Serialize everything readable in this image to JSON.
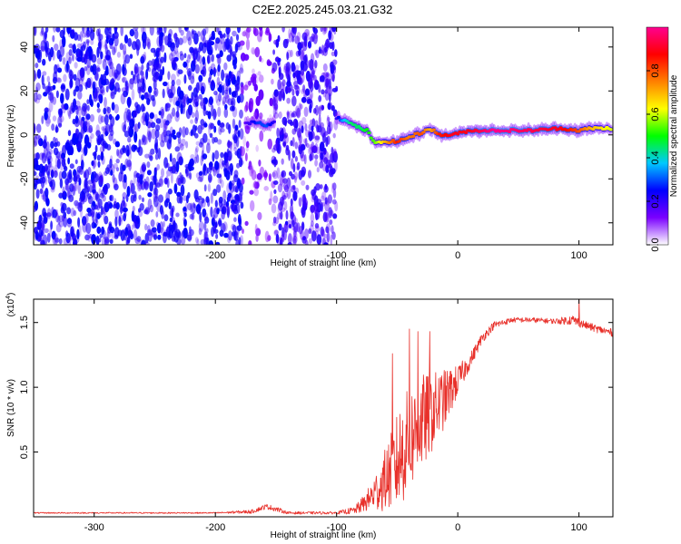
{
  "title": "C2E2.2025.245.03.21.G32",
  "chart_data": [
    {
      "type": "heatmap",
      "name": "spectrogram",
      "xlabel": "Height of straight line (km)",
      "ylabel": "Frequency (Hz)",
      "xlim": [
        -350,
        128
      ],
      "ylim": [
        -50,
        49
      ],
      "xticks": [
        -300,
        -200,
        -100,
        0,
        100
      ],
      "xtick_labels": [
        "-300",
        "-200",
        "-100",
        "0",
        "100"
      ],
      "yticks": [
        -40,
        -20,
        0,
        20,
        40
      ],
      "ytick_labels": [
        "-40",
        "-20",
        "0",
        "20",
        "40"
      ],
      "blocks": [
        {
          "x0": -350,
          "x1": -178,
          "level": 0.18,
          "state": "broadband-noise"
        },
        {
          "x0": -178,
          "x1": -152,
          "level": 0.08,
          "state": "sparse-noise"
        },
        {
          "x0": -152,
          "x1": -100,
          "level": 0.15,
          "state": "broadband-noise"
        }
      ],
      "tonal_band": [
        {
          "x": -175,
          "f": 5,
          "amp": 0.15
        },
        {
          "x": -165,
          "f": 6,
          "amp": 0.28
        },
        {
          "x": -158,
          "f": 4,
          "amp": 0.3
        },
        {
          "x": -150,
          "f": 7,
          "amp": 0.18
        },
        {
          "x": -100,
          "f": 8,
          "amp": 0.2
        },
        {
          "x": -95,
          "f": 7,
          "amp": 0.35
        },
        {
          "x": -88,
          "f": 5,
          "amp": 0.45
        },
        {
          "x": -80,
          "f": 3,
          "amp": 0.45
        },
        {
          "x": -75,
          "f": 2,
          "amp": 0.5
        },
        {
          "x": -68,
          "f": -4,
          "amp": 0.55
        },
        {
          "x": -60,
          "f": -3,
          "amp": 0.7
        },
        {
          "x": -50,
          "f": -3,
          "amp": 0.85
        },
        {
          "x": -40,
          "f": -1,
          "amp": 0.75
        },
        {
          "x": -30,
          "f": 1,
          "amp": 0.8
        },
        {
          "x": -23,
          "f": 3,
          "amp": 0.7
        },
        {
          "x": -15,
          "f": 0,
          "amp": 0.85
        },
        {
          "x": -5,
          "f": 0,
          "amp": 0.9
        },
        {
          "x": 10,
          "f": 2,
          "amp": 0.9
        },
        {
          "x": 30,
          "f": 2,
          "amp": 1.0
        },
        {
          "x": 60,
          "f": 2,
          "amp": 0.95
        },
        {
          "x": 85,
          "f": 3,
          "amp": 0.9
        },
        {
          "x": 100,
          "f": 2,
          "amp": 0.8
        },
        {
          "x": 110,
          "f": 3,
          "amp": 0.7
        },
        {
          "x": 128,
          "f": 3,
          "amp": 0.6
        }
      ],
      "colorbar": {
        "label": "Normalized spectral amplitude",
        "range": [
          0,
          1
        ],
        "ticks": [
          0.0,
          0.2,
          0.4,
          0.6,
          0.8
        ],
        "tick_labels": [
          "0.0",
          "0.2",
          "0.4",
          "0.6",
          "0.8"
        ],
        "stops": [
          "#ffffff",
          "#7a00ff",
          "#0000ff",
          "#00c8ff",
          "#00ff00",
          "#ffff00",
          "#ff8000",
          "#ff0000",
          "#ff0090"
        ]
      }
    },
    {
      "type": "line",
      "name": "snr",
      "xlabel": "Height of straight line (km)",
      "ylabel": "SNR (10 * v/v)",
      "y_multiplier": "(x10",
      "y_multiplier_exp": "4",
      "y_multiplier_close": ")",
      "xlim": [
        -350,
        128
      ],
      "ylim": [
        0,
        1.68
      ],
      "xticks": [
        -300,
        -200,
        -100,
        0,
        100
      ],
      "xtick_labels": [
        "-300",
        "-200",
        "-100",
        "0",
        "100"
      ],
      "yticks": [
        0.5,
        1.0,
        1.5
      ],
      "ytick_labels": [
        "0.5",
        "1.0",
        "1.5"
      ],
      "color": "#e8302a",
      "series": [
        {
          "name": "SNR",
          "x": [
            -350,
            -200,
            -170,
            -158,
            -150,
            -140,
            -100,
            -85,
            -75,
            -65,
            -55,
            -50,
            -45,
            -38,
            -30,
            -20,
            -10,
            0,
            10,
            20,
            30,
            45,
            60,
            80,
            95,
            105,
            115,
            128
          ],
          "y": [
            0.03,
            0.03,
            0.04,
            0.08,
            0.06,
            0.03,
            0.03,
            0.05,
            0.12,
            0.22,
            0.35,
            0.42,
            0.52,
            0.62,
            0.72,
            0.82,
            0.92,
            1.05,
            1.2,
            1.38,
            1.48,
            1.52,
            1.52,
            1.51,
            1.52,
            1.48,
            1.45,
            1.42
          ],
          "noise": [
            0.005,
            0.005,
            0.015,
            0.02,
            0.02,
            0.01,
            0.01,
            0.03,
            0.08,
            0.18,
            0.3,
            0.38,
            0.42,
            0.4,
            0.38,
            0.3,
            0.22,
            0.12,
            0.06,
            0.04,
            0.03,
            0.02,
            0.02,
            0.02,
            0.04,
            0.03,
            0.03,
            0.03
          ],
          "spikes": [
            {
              "x": -54,
              "y": 1.26
            },
            {
              "x": -40,
              "y": 1.45
            },
            {
              "x": -33,
              "y": 1.43
            },
            {
              "x": -23,
              "y": 1.43
            },
            {
              "x": 100,
              "y": 1.68
            }
          ]
        }
      ]
    }
  ]
}
